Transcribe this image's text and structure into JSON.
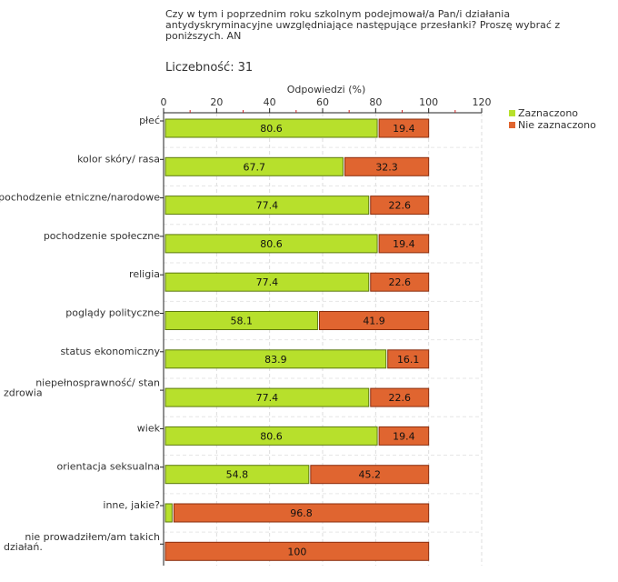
{
  "question": "Czy w tym i poprzednim roku szkolnym podejmował/a Pan/i działania antydyskryminacyjne uwzględniające następujące przesłanki? Proszę wybrać z poniższych. AN",
  "count": {
    "label": "Liczebność:",
    "value": "31"
  },
  "chart_data": {
    "type": "bar",
    "orientation": "horizontal",
    "stacked": true,
    "title": "Czy w tym i poprzednim roku szkolnym podejmował/a Pan/i działania antydyskryminacyjne uwzględniające następujące przesłanki? Proszę wybrać z poniższych. AN",
    "xlabel": "Odpowiedzi (%)",
    "ylabel": "",
    "xlim": [
      0,
      120
    ],
    "xticks": [
      0,
      20,
      40,
      60,
      80,
      100,
      120
    ],
    "grid": true,
    "legend_position": "top-right",
    "categories": [
      "płeć",
      "kolor skóry/ rasa",
      "pochodzenie etniczne/narodowe",
      "pochodzenie społeczne",
      "religia",
      "poglądy polityczne",
      "status ekonomiczny",
      "niepełnosprawność/ stan zdrowia",
      "wiek",
      "orientacja seksualna",
      "inne, jakie?",
      "nie prowadziłem/am takich działań."
    ],
    "category_lines": [
      [
        "płeć"
      ],
      [
        "kolor skóry/ rasa"
      ],
      [
        "pochodzenie etniczne/narodowe"
      ],
      [
        "pochodzenie społeczne"
      ],
      [
        "religia"
      ],
      [
        "poglądy polityczne"
      ],
      [
        "status ekonomiczny"
      ],
      [
        "niepełnosprawność/ stan",
        "zdrowia"
      ],
      [
        "wiek"
      ],
      [
        "orientacja seksualna"
      ],
      [
        "inne, jakie?"
      ],
      [
        "nie prowadziłem/am takich",
        "działań."
      ]
    ],
    "series": [
      {
        "name": "Zaznaczono",
        "color": "#b7e02c",
        "border": "#5d7a10",
        "values": [
          80.6,
          67.7,
          77.4,
          80.6,
          77.4,
          58.1,
          83.9,
          77.4,
          80.6,
          54.8,
          3.2,
          0
        ],
        "labels": [
          "80.6",
          "67.7",
          "77.4",
          "80.6",
          "77.4",
          "58.1",
          "83.9",
          "77.4",
          "80.6",
          "54.8",
          "",
          ""
        ]
      },
      {
        "name": "Nie zaznaczono",
        "color": "#e06530",
        "border": "#8a2e0e",
        "values": [
          19.4,
          32.3,
          22.6,
          19.4,
          22.6,
          41.9,
          16.1,
          22.6,
          19.4,
          45.2,
          96.8,
          100
        ],
        "labels": [
          "19.4",
          "32.3",
          "22.6",
          "19.4",
          "22.6",
          "41.9",
          "16.1",
          "22.6",
          "19.4",
          "45.2",
          "96.8",
          "100"
        ]
      }
    ]
  }
}
